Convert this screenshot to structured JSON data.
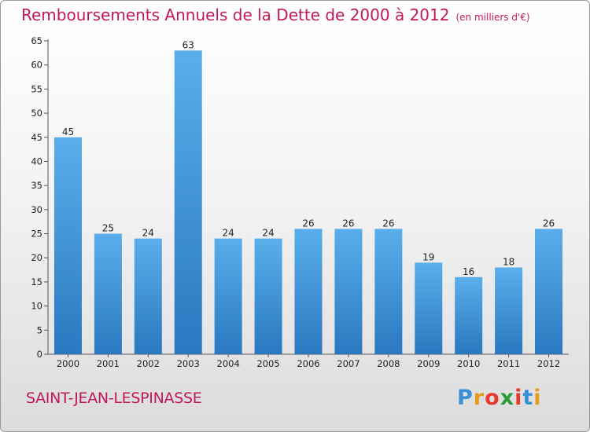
{
  "chart_data": {
    "type": "bar",
    "title": "Remboursements Annuels de la Dette de 2000 à 2012",
    "subtitle": "(en milliers d'€)",
    "categories": [
      "2000",
      "2001",
      "2002",
      "2003",
      "2004",
      "2005",
      "2006",
      "2007",
      "2008",
      "2009",
      "2010",
      "2011",
      "2012"
    ],
    "values": [
      45,
      25,
      24,
      63,
      24,
      24,
      26,
      26,
      26,
      19,
      16,
      18,
      26
    ],
    "ylim": [
      0,
      65
    ],
    "yticks": [
      0,
      5,
      10,
      15,
      20,
      25,
      30,
      35,
      40,
      45,
      50,
      55,
      60,
      65
    ],
    "grid": false,
    "bar_color": "#4a9fdf"
  },
  "commune": "SAINT-JEAN-LESPINASSE",
  "brand": {
    "letters": [
      "P",
      "r",
      "o",
      "x",
      "i",
      "t",
      "i"
    ],
    "colors": [
      "#3a8fd6",
      "#e69a1a",
      "#e63a2e",
      "#2a9d3a",
      "#e63a2e",
      "#3a8fd6",
      "#e69a1a"
    ]
  }
}
